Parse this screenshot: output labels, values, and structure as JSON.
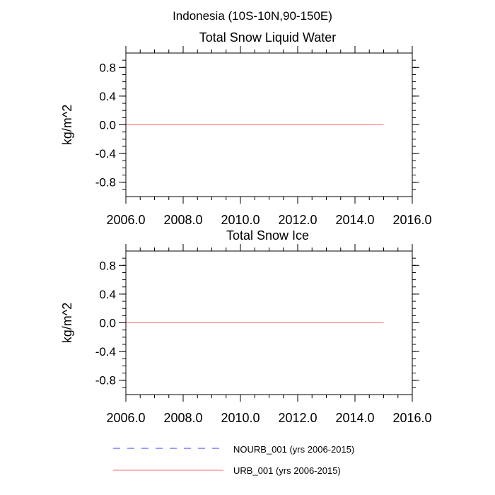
{
  "figure": {
    "title": "Indonesia (10S-10N,90-150E)"
  },
  "chart_data": [
    {
      "type": "line",
      "title": "Total Snow Liquid Water",
      "xlabel": "",
      "ylabel": "kg/m^2",
      "xlim": [
        2006.0,
        2016.0
      ],
      "ylim": [
        -1.0,
        1.0
      ],
      "xticks": [
        2006.0,
        2008.0,
        2010.0,
        2012.0,
        2014.0,
        2016.0
      ],
      "xtick_labels": [
        "2006.0",
        "2008.0",
        "2010.0",
        "2012.0",
        "2014.0",
        "2016.0"
      ],
      "yticks": [
        0.8,
        0.4,
        0.0,
        -0.4,
        -0.8
      ],
      "ytick_labels": [
        "0.8",
        "0.4",
        "0.0",
        "-0.4",
        "-0.8"
      ],
      "grid": false,
      "series": [
        {
          "name": "NOURB_001 (yrs 2006-2015)",
          "color": "#3b3bff",
          "dash": "dashed",
          "x": [
            2006.0,
            2007.0,
            2008.0,
            2009.0,
            2010.0,
            2011.0,
            2012.0,
            2013.0,
            2014.0,
            2015.0
          ],
          "y": [
            0,
            0,
            0,
            0,
            0,
            0,
            0,
            0,
            0,
            0
          ]
        },
        {
          "name": "URB_001 (yrs 2006-2015)",
          "color": "#ff6b6b",
          "dash": "solid",
          "x": [
            2006.0,
            2007.0,
            2008.0,
            2009.0,
            2010.0,
            2011.0,
            2012.0,
            2013.0,
            2014.0,
            2015.0
          ],
          "y": [
            0,
            0,
            0,
            0,
            0,
            0,
            0,
            0,
            0,
            0
          ]
        }
      ]
    },
    {
      "type": "line",
      "title": "Total Snow Ice",
      "xlabel": "",
      "ylabel": "kg/m^2",
      "xlim": [
        2006.0,
        2016.0
      ],
      "ylim": [
        -1.0,
        1.0
      ],
      "xticks": [
        2006.0,
        2008.0,
        2010.0,
        2012.0,
        2014.0,
        2016.0
      ],
      "xtick_labels": [
        "2006.0",
        "2008.0",
        "2010.0",
        "2012.0",
        "2014.0",
        "2016.0"
      ],
      "yticks": [
        0.8,
        0.4,
        0.0,
        -0.4,
        -0.8
      ],
      "ytick_labels": [
        "0.8",
        "0.4",
        "0.0",
        "-0.4",
        "-0.8"
      ],
      "grid": false,
      "series": [
        {
          "name": "NOURB_001 (yrs 2006-2015)",
          "color": "#3b3bff",
          "dash": "dashed",
          "x": [
            2006.0,
            2007.0,
            2008.0,
            2009.0,
            2010.0,
            2011.0,
            2012.0,
            2013.0,
            2014.0,
            2015.0
          ],
          "y": [
            0,
            0,
            0,
            0,
            0,
            0,
            0,
            0,
            0,
            0
          ]
        },
        {
          "name": "URB_001 (yrs 2006-2015)",
          "color": "#ff6b6b",
          "dash": "solid",
          "x": [
            2006.0,
            2007.0,
            2008.0,
            2009.0,
            2010.0,
            2011.0,
            2012.0,
            2013.0,
            2014.0,
            2015.0
          ],
          "y": [
            0,
            0,
            0,
            0,
            0,
            0,
            0,
            0,
            0,
            0
          ]
        }
      ]
    }
  ],
  "legend": {
    "placement": "bottom",
    "entries": [
      {
        "label": "NOURB_001 (yrs 2006-2015)",
        "color": "#3b3bff",
        "dash": "dashed"
      },
      {
        "label": "URB_001 (yrs 2006-2015)",
        "color": "#ff6b6b",
        "dash": "solid"
      }
    ]
  }
}
